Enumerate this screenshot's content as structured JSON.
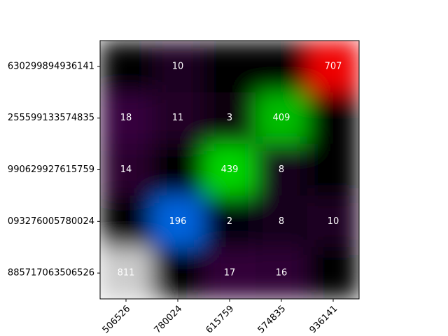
{
  "chart_data": {
    "type": "heatmap",
    "x_categories": [
      "506526",
      "780024",
      "615759",
      "574835",
      "936141"
    ],
    "y_categories": [
      "630299894936141",
      "255599133574835",
      "990629927615759",
      "093276005780024",
      "885717063506526"
    ],
    "values": [
      [
        0,
        10,
        0,
        0,
        707
      ],
      [
        18,
        11,
        3,
        409,
        0
      ],
      [
        14,
        0,
        439,
        8,
        0
      ],
      [
        0,
        196,
        2,
        8,
        10
      ],
      [
        811,
        0,
        17,
        16,
        0
      ]
    ],
    "value_labels": [
      [
        null,
        "10",
        null,
        null,
        "707"
      ],
      [
        "18",
        "11",
        "3",
        "409",
        null
      ],
      [
        "14",
        null,
        "439",
        "8",
        null
      ],
      [
        null,
        "196",
        "2",
        "8",
        "10"
      ],
      [
        "811",
        null,
        "17",
        "16",
        null
      ]
    ],
    "colormap": "nipy_spectral"
  }
}
